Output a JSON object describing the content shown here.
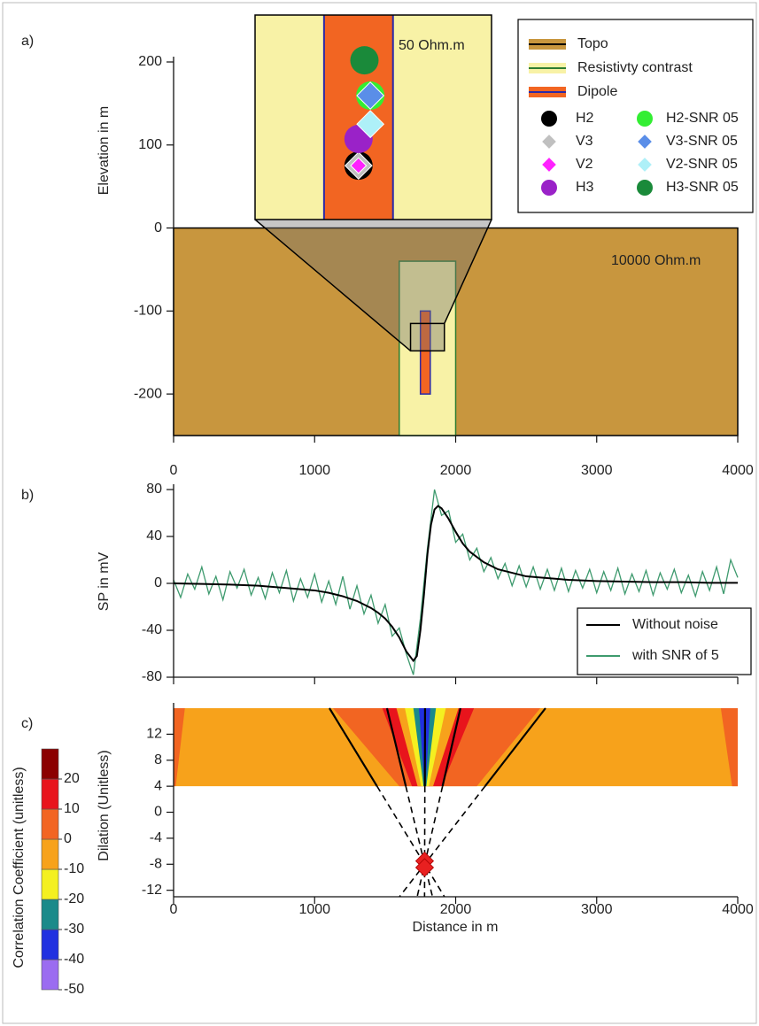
{
  "chart_data": [
    {
      "type": "model",
      "label": "a)",
      "ylabel": "Elevation in m",
      "xlim": [
        0,
        4000
      ],
      "xticks": [
        0,
        1000,
        2000,
        3000,
        4000
      ],
      "ylim": [
        -250,
        200
      ],
      "yticks": [
        -200,
        -100,
        0,
        100,
        200
      ],
      "annotations": [
        {
          "text": "50 Ohm.m"
        },
        {
          "text": "10000 Ohm.m"
        }
      ],
      "regions": [
        {
          "name": "Topo",
          "color": "#c8963e",
          "stroke": "#000000",
          "x": [
            0,
            4000
          ],
          "y": [
            -250,
            0
          ]
        },
        {
          "name": "Resistivty contrast",
          "color": "#f8f2a6",
          "stroke": "#2e7d32",
          "x": [
            1600,
            2000
          ],
          "y": [
            -250,
            -40
          ]
        },
        {
          "name": "Dipole",
          "color": "#f26522",
          "stroke": "#2a2aa8",
          "x": [
            1750,
            1820
          ],
          "y": [
            -200,
            -100
          ]
        }
      ],
      "zoom": {
        "x": [
          1680,
          1920
        ],
        "y": [
          -148,
          -115
        ]
      },
      "series": [
        {
          "name": "H2",
          "color": "#000000",
          "marker": "circle",
          "x": [
            1785
          ],
          "y": [
            -139.3
          ]
        },
        {
          "name": "V3",
          "color": "#c0c0c0",
          "marker": "diamond",
          "x": [
            1785
          ],
          "y": [
            -139.3
          ]
        },
        {
          "name": "V2",
          "color": "#ff22ff",
          "marker": "small-diamond",
          "x": [
            1785
          ],
          "y": [
            -139.3
          ]
        },
        {
          "name": "H3",
          "color": "#9a22c8",
          "marker": "circle",
          "x": [
            1785
          ],
          "y": [
            -135
          ]
        },
        {
          "name": "H2-SNR 05",
          "color": "#33ee33",
          "marker": "circle",
          "x": [
            1797
          ],
          "y": [
            -128
          ]
        },
        {
          "name": "V3-SNR 05",
          "color": "#5a8ee8",
          "marker": "diamond",
          "x": [
            1797
          ],
          "y": [
            -128
          ]
        },
        {
          "name": "V2-SNR 05",
          "color": "#aef0f8",
          "marker": "diamond",
          "x": [
            1797
          ],
          "y": [
            -132.6
          ]
        },
        {
          "name": "H3-SNR 05",
          "color": "#1a8a3a",
          "marker": "circle",
          "x": [
            1791
          ],
          "y": [
            -122.3
          ]
        }
      ]
    },
    {
      "type": "line",
      "label": "b)",
      "ylabel": "SP in mV",
      "xlim": [
        0,
        4000
      ],
      "xticks": [
        0,
        1000,
        2000,
        3000,
        4000
      ],
      "ylim": [
        -80,
        80
      ],
      "yticks": [
        -80,
        -40,
        0,
        40,
        80
      ],
      "legend": "lower right",
      "series": [
        {
          "name": "Without noise",
          "color": "#000000",
          "x": [
            0,
            200,
            400,
            600,
            800,
            1000,
            1100,
            1200,
            1300,
            1400,
            1450,
            1500,
            1550,
            1600,
            1650,
            1700,
            1725,
            1750,
            1775,
            1800,
            1825,
            1850,
            1875,
            1900,
            1950,
            2000,
            2050,
            2100,
            2200,
            2300,
            2400,
            2500,
            2600,
            2800,
            3000,
            3200,
            3400,
            3600,
            3800,
            4000
          ],
          "values": [
            0,
            -0.5,
            -1,
            -2,
            -4,
            -6,
            -8,
            -11,
            -15,
            -21,
            -25,
            -30,
            -37,
            -46,
            -58,
            -66,
            -62,
            -40,
            -10,
            25,
            50,
            63,
            66,
            64,
            55,
            44,
            34,
            27,
            18,
            12,
            9,
            6,
            5,
            3,
            2,
            1.5,
            1,
            1,
            0.5,
            0.5
          ]
        },
        {
          "name": "with SNR of 5",
          "color": "#3e9a6e",
          "x": [
            0,
            50,
            100,
            150,
            200,
            250,
            300,
            350,
            400,
            450,
            500,
            550,
            600,
            650,
            700,
            750,
            800,
            850,
            900,
            950,
            1000,
            1050,
            1100,
            1150,
            1200,
            1250,
            1300,
            1350,
            1400,
            1450,
            1500,
            1550,
            1600,
            1650,
            1700,
            1750,
            1800,
            1850,
            1900,
            1950,
            2000,
            2050,
            2100,
            2150,
            2200,
            2250,
            2300,
            2350,
            2400,
            2450,
            2500,
            2550,
            2600,
            2650,
            2700,
            2750,
            2800,
            2850,
            2900,
            2950,
            3000,
            3050,
            3100,
            3150,
            3200,
            3250,
            3300,
            3350,
            3400,
            3450,
            3500,
            3550,
            3600,
            3650,
            3700,
            3750,
            3800,
            3850,
            3900,
            3950,
            4000
          ],
          "values": [
            3,
            -12,
            8,
            -5,
            14,
            -9,
            6,
            -14,
            10,
            -4,
            12,
            -10,
            5,
            -13,
            9,
            -8,
            11,
            -15,
            4,
            -12,
            8,
            -16,
            2,
            -18,
            6,
            -22,
            -2,
            -26,
            -10,
            -34,
            -18,
            -45,
            -38,
            -60,
            -78,
            -30,
            30,
            80,
            58,
            62,
            35,
            42,
            20,
            30,
            10,
            22,
            4,
            17,
            -2,
            15,
            -3,
            14,
            -5,
            12,
            -6,
            13,
            -7,
            11,
            -4,
            12,
            -8,
            10,
            -6,
            13,
            -9,
            8,
            -7,
            11,
            -10,
            9,
            -5,
            12,
            -8,
            7,
            -11,
            10,
            -6,
            14,
            -9,
            20,
            5
          ]
        }
      ]
    },
    {
      "type": "contour",
      "label": "c)",
      "ylabel": "Dilation (Unitless)",
      "xlabel": "Distance in m",
      "xlim": [
        0,
        4000
      ],
      "xticks": [
        0,
        1000,
        2000,
        3000,
        4000
      ],
      "ylim": [
        -13,
        16
      ],
      "yticks": [
        -12,
        -8,
        -4,
        0,
        4,
        8,
        12
      ],
      "colorbar": {
        "label": "Correlation Coefficient (unitless)",
        "levels": [
          -50,
          -40,
          -30,
          -20,
          -10,
          0,
          10,
          20,
          30
        ],
        "colors": [
          "#9b6cf0",
          "#2030e0",
          "#1a8a8a",
          "#f4f020",
          "#f7a21b",
          "#f26522",
          "#e8141c",
          "#8b0000"
        ],
        "ticks": [
          -50,
          -40,
          -30,
          -20,
          -10,
          0,
          10,
          20
        ]
      },
      "band_y": [
        4,
        16
      ],
      "bands": [
        {
          "value": -5,
          "x_top": [
            0,
            4000
          ],
          "x_bottom": [
            0,
            4000
          ]
        },
        {
          "value": 5,
          "x_top": [
            0,
            80
          ],
          "x_bottom": [
            0,
            15
          ]
        },
        {
          "value": 5,
          "x_top": [
            3880,
            4000
          ],
          "x_bottom": [
            3960,
            4000
          ]
        },
        {
          "value": 5,
          "x_top": [
            1130,
            2600
          ],
          "x_bottom": [
            1600,
            2150
          ]
        },
        {
          "value": 15,
          "x_top": [
            1480,
            2130
          ],
          "x_bottom": [
            1690,
            1900
          ]
        },
        {
          "value": -5,
          "x_top": [
            1580,
            2020
          ],
          "x_bottom": [
            1730,
            1840
          ]
        },
        {
          "value": -15,
          "x_top": [
            1640,
            1930
          ],
          "x_bottom": [
            1755,
            1810
          ]
        },
        {
          "value": -25,
          "x_top": [
            1700,
            1860
          ],
          "x_bottom": [
            1772,
            1792
          ]
        },
        {
          "value": -35,
          "x_top": [
            1740,
            1820
          ],
          "x_bottom": [
            1779,
            1786
          ]
        }
      ],
      "rays": {
        "x_top": [
          1105,
          1513,
          1783,
          2034,
          2637
        ],
        "y_top": 16,
        "focus": {
          "x": 1780,
          "y": -8
        }
      },
      "sources": {
        "color": "#e82020",
        "x": [
          1780,
          1780
        ],
        "y": [
          -7.5,
          -8.5
        ]
      }
    }
  ]
}
